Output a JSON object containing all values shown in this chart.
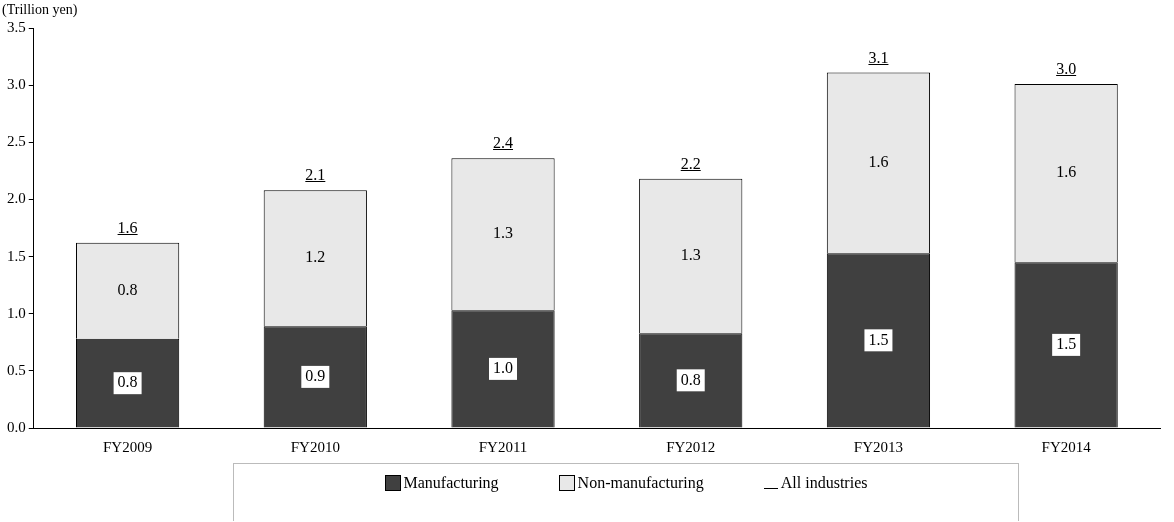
{
  "chart_data": {
    "type": "bar",
    "stacked": true,
    "ylabel": "(Trillion yen)",
    "categories": [
      "FY2009",
      "FY2010",
      "FY2011",
      "FY2012",
      "FY2013",
      "FY2014"
    ],
    "series": [
      {
        "name": "Manufacturing",
        "color": "#404040",
        "values": [
          0.78,
          0.89,
          1.03,
          0.83,
          1.53,
          1.45
        ],
        "value_labels": [
          "0.8",
          "0.9",
          "1.0",
          "0.8",
          "1.5",
          "1.5"
        ]
      },
      {
        "name": "Non-manufacturing",
        "color": "#e8e8e8",
        "values": [
          0.84,
          1.19,
          1.33,
          1.35,
          1.58,
          1.56
        ],
        "value_labels": [
          "0.8",
          "1.2",
          "1.3",
          "1.3",
          "1.6",
          "1.6"
        ]
      }
    ],
    "totals": [
      "1.6",
      "2.1",
      "2.4",
      "2.2",
      "3.1",
      "3.0"
    ],
    "annotations": [
      "All industries"
    ],
    "ylim": [
      0,
      3.5
    ],
    "yticks": [
      {
        "value": 0,
        "label": "0.0"
      },
      0.5,
      {
        "value": 1,
        "label": "1.0"
      },
      1.5,
      {
        "value": 2,
        "label": "2.0"
      },
      2.5,
      {
        "value": 3,
        "label": "3.0"
      },
      3.5
    ],
    "grid": false,
    "legend": "bottom"
  }
}
